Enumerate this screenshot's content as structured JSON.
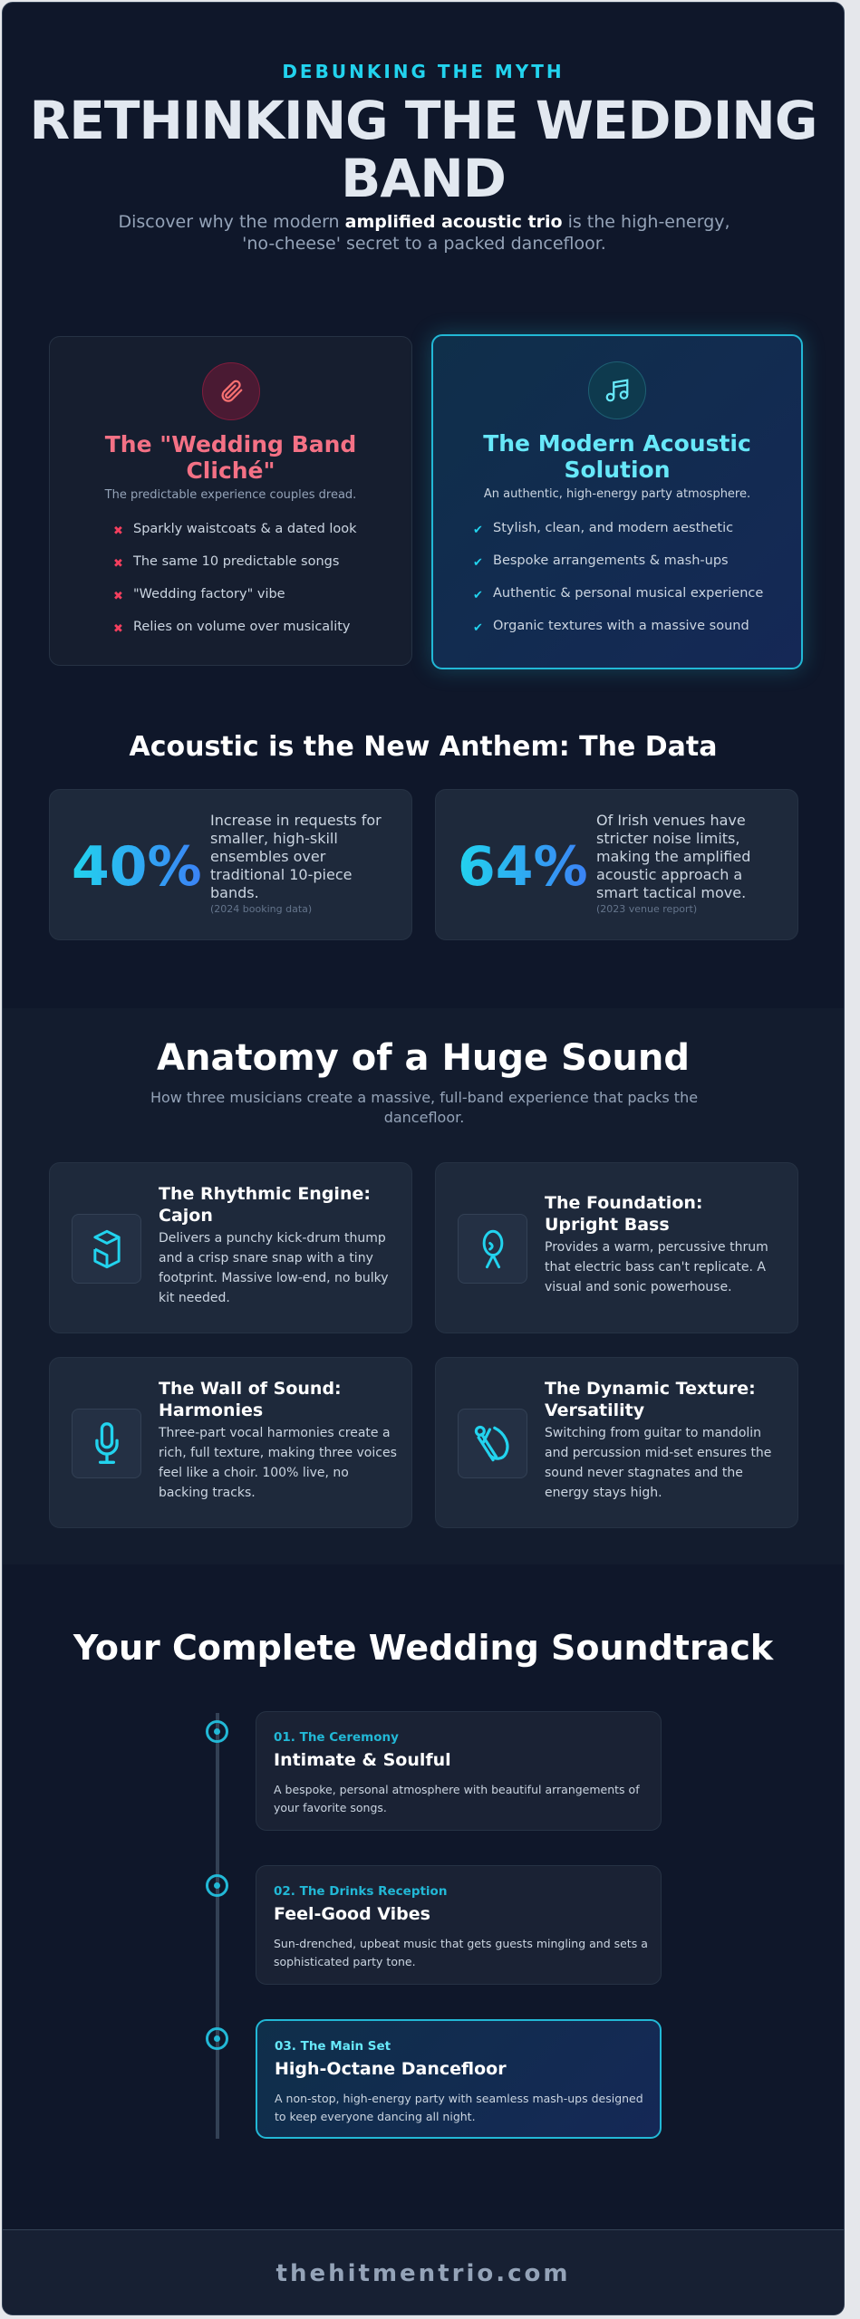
{
  "hero": {
    "kicker": "DEBUNKING THE MYTH",
    "title_line1": "RETHINKING THE WEDDING",
    "title_line2": "BAND",
    "subtitle_pre": "Discover why the modern ",
    "subtitle_bold": "amplified acoustic trio",
    "subtitle_post": " is the high-energy, 'no-cheese' secret to a packed dancefloor."
  },
  "comparison": {
    "cliche": {
      "icon": "paperclip-icon",
      "title": "The \"Wedding Band Cliché\"",
      "subtitle": "The predictable experience couples dread.",
      "marker": "✖",
      "items": [
        "Sparkly waistcoats & a dated look",
        "The same 10 predictable songs",
        "\"Wedding factory\" vibe",
        "Relies on volume over musicality"
      ],
      "color": "#f87171"
    },
    "solution": {
      "icon": "music-note-icon",
      "title": "The Modern Acoustic Solution",
      "subtitle": "An authentic, high-energy party atmosphere.",
      "marker": "✔",
      "items": [
        "Stylish, clean, and modern aesthetic",
        "Bespoke arrangements & mash-ups",
        "Authentic & personal musical experience",
        "Organic textures with a massive sound"
      ],
      "color": "#67e8f9"
    }
  },
  "data": {
    "heading": "Acoustic is the New Anthem: The Data",
    "stats": [
      {
        "value": "40%",
        "text": "Increase in requests for smaller, high-skill ensembles over traditional 10-piece bands.",
        "source": "(2024 booking data)"
      },
      {
        "value": "64%",
        "text": "Of Irish venues have stricter noise limits, making the amplified acoustic approach a smart tactical move.",
        "source": "(2023 venue report)"
      }
    ]
  },
  "anatomy": {
    "heading": "Anatomy of a Huge Sound",
    "subtitle": "How three musicians create a massive, full-band experience that packs the dancefloor.",
    "cards": [
      {
        "icon": "cajon-box-icon",
        "title": "The Rhythmic Engine: Cajon",
        "text": "Delivers a punchy kick-drum thump and a crisp snare snap with a tiny footprint. Massive low-end, no bulky kit needed."
      },
      {
        "icon": "upright-bass-icon",
        "title": "The Foundation: Upright Bass",
        "text": "Provides a warm, percussive thrum that electric bass can't replicate. A visual and sonic powerhouse."
      },
      {
        "icon": "microphone-icon",
        "title": "The Wall of Sound: Harmonies",
        "text": "Three-part vocal harmonies create a rich, full texture, making three voices feel like a choir. 100% live, no backing tracks."
      },
      {
        "icon": "instruments-icon",
        "title": "The Dynamic Texture: Versatility",
        "text": "Switching from guitar to mandolin and percussion mid-set ensures the sound never stagnates and the energy stays high."
      }
    ]
  },
  "soundtrack": {
    "heading": "Your Complete Wedding Soundtrack",
    "steps": [
      {
        "kicker": "01. The Ceremony",
        "title": "Intimate & Soulful",
        "text": "A bespoke, personal atmosphere with beautiful arrangements of your favorite songs."
      },
      {
        "kicker": "02. The Drinks Reception",
        "title": "Feel-Good Vibes",
        "text": "Sun-drenched, upbeat music that gets guests mingling and sets a sophisticated party tone."
      },
      {
        "kicker": "03. The Main Set",
        "title": "High-Octane Dancefloor",
        "text": "A non-stop, high-energy party with seamless mash-ups designed to keep everyone dancing all night."
      }
    ]
  },
  "footer": {
    "website": "thehitmentrio.com"
  },
  "colors": {
    "accent": "#22d3ee",
    "negative": "#f87171",
    "background": "#0f172a"
  }
}
